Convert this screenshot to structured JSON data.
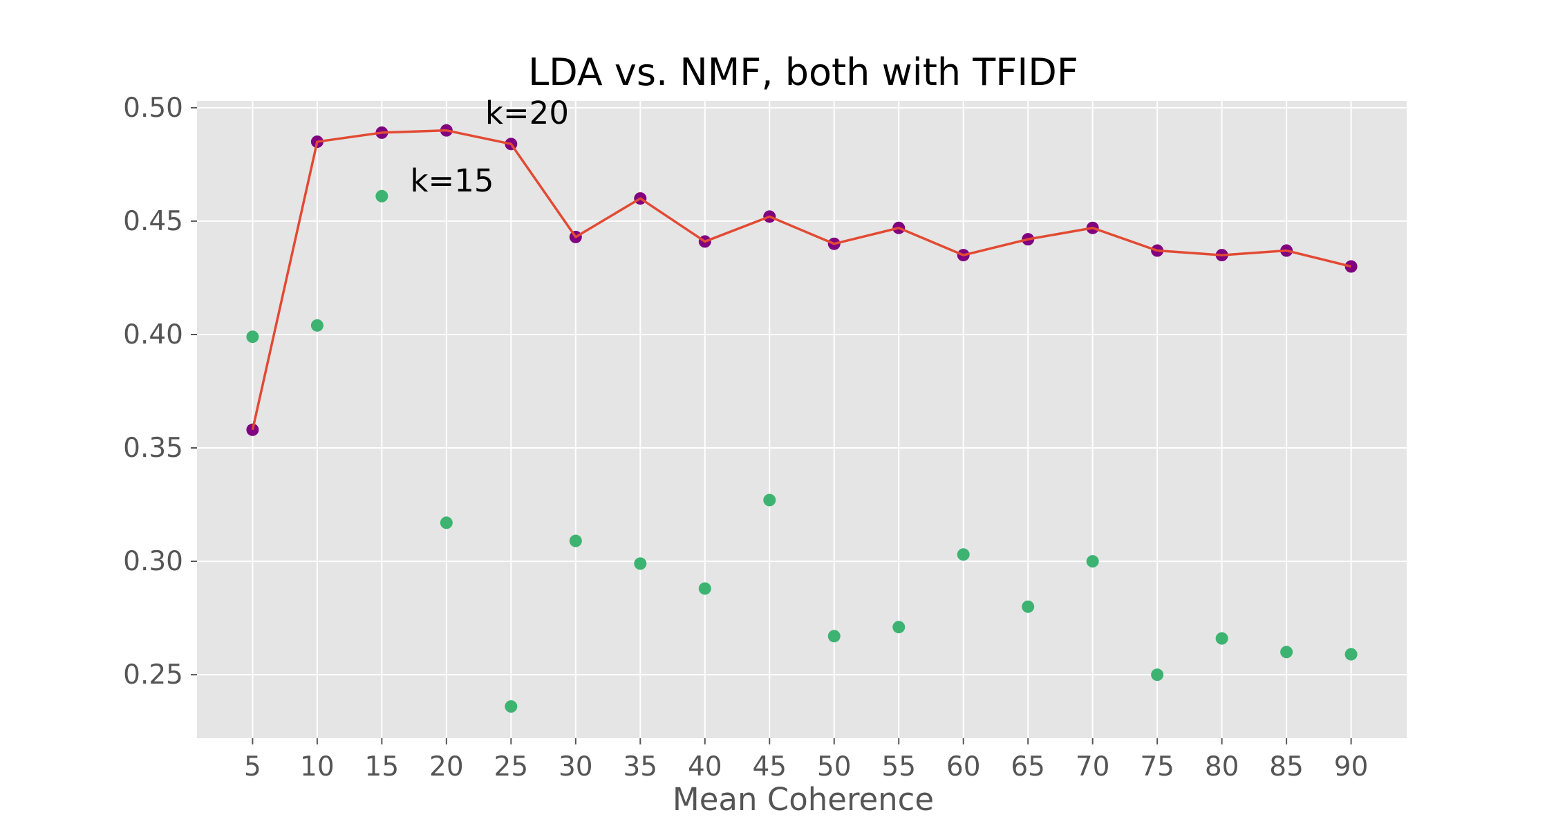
{
  "chart_data": {
    "type": "line",
    "title": "LDA vs. NMF, both with TFIDF",
    "xlabel": "Mean Coherence",
    "ylabel": "",
    "x": [
      5,
      10,
      15,
      20,
      25,
      30,
      35,
      40,
      45,
      50,
      55,
      60,
      65,
      70,
      75,
      80,
      85,
      90
    ],
    "x_tick_labels": [
      "5",
      "10",
      "15",
      "20",
      "25",
      "30",
      "35",
      "40",
      "45",
      "50",
      "55",
      "60",
      "65",
      "70",
      "75",
      "80",
      "85",
      "90"
    ],
    "y_tick_values": [
      0.25,
      0.3,
      0.35,
      0.4,
      0.45,
      0.5
    ],
    "y_tick_labels": [
      "0.25",
      "0.30",
      "0.35",
      "0.40",
      "0.45",
      "0.50"
    ],
    "xlim": [
      0.7,
      94.3
    ],
    "ylim": [
      0.222,
      0.503
    ],
    "grid": true,
    "series": [
      {
        "type": "line+scatter",
        "color": "#E24A33",
        "marker_color": "#800080",
        "values": [
          0.358,
          0.485,
          0.489,
          0.49,
          0.484,
          0.443,
          0.46,
          0.441,
          0.452,
          0.44,
          0.447,
          0.435,
          0.442,
          0.447,
          0.437,
          0.435,
          0.437,
          0.43
        ]
      },
      {
        "type": "scatter",
        "color": "#3CB371",
        "values": [
          0.399,
          0.404,
          0.461,
          0.317,
          0.236,
          0.309,
          0.299,
          0.288,
          0.327,
          0.267,
          0.271,
          0.303,
          0.28,
          0.3,
          0.25,
          0.266,
          0.26,
          0.259
        ]
      }
    ],
    "annotations": [
      {
        "text": "k=20",
        "x": 23,
        "y": 0.493
      },
      {
        "text": "k=15",
        "x": 17.2,
        "y": 0.463
      }
    ],
    "colors": {
      "plot_background": "#E5E5E5",
      "grid": "#FFFFFF"
    }
  }
}
